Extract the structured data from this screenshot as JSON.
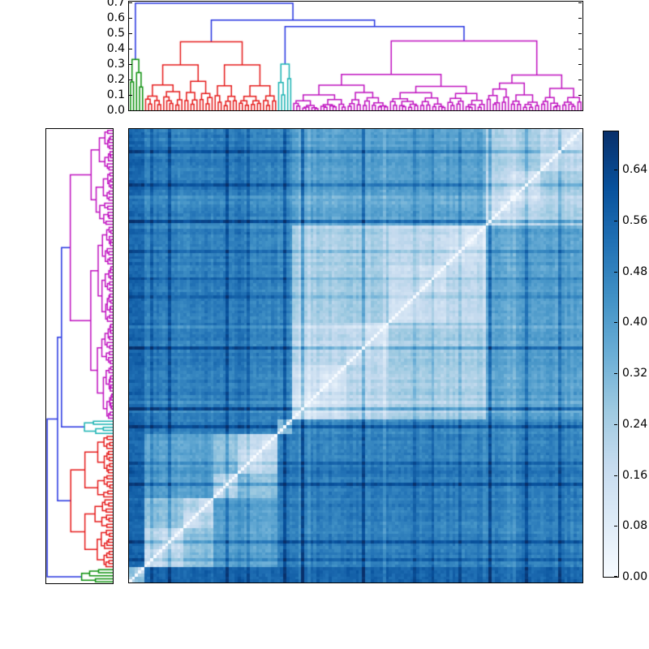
{
  "figure": {
    "background": "#ffffff",
    "title": ""
  },
  "chart_data": {
    "type": "heatmap",
    "subtype": "clustermap-pairwise-distance-matrix",
    "title": "",
    "n_leaves": 150,
    "colormap": {
      "name": "Blues",
      "vmin": 0.0,
      "vmax": 0.7,
      "stops": [
        {
          "t": 0.0,
          "rgb": [
            247,
            251,
            255
          ]
        },
        {
          "t": 0.125,
          "rgb": [
            222,
            235,
            247
          ]
        },
        {
          "t": 0.25,
          "rgb": [
            198,
            219,
            239
          ]
        },
        {
          "t": 0.375,
          "rgb": [
            158,
            202,
            225
          ]
        },
        {
          "t": 0.5,
          "rgb": [
            107,
            174,
            214
          ]
        },
        {
          "t": 0.625,
          "rgb": [
            66,
            146,
            198
          ]
        },
        {
          "t": 0.75,
          "rgb": [
            33,
            113,
            181
          ]
        },
        {
          "t": 0.875,
          "rgb": [
            8,
            81,
            156
          ]
        },
        {
          "t": 1.0,
          "rgb": [
            8,
            48,
            107
          ]
        }
      ]
    },
    "heatmap": {
      "grid": false,
      "diagonal_value": 0.0,
      "diagonal_note": "white zero-distance line runs bottom-left to top-right (row order is reversed column order)",
      "column_order_left_to_right": [
        "green",
        "red",
        "cyan",
        "magenta"
      ],
      "row_order_top_to_bottom": [
        "magenta",
        "cyan",
        "red",
        "green"
      ],
      "block_distances": {
        "within_green": 0.15,
        "within_red": 0.15,
        "within_cyan": 0.15,
        "within_magenta": 0.2,
        "green_vs_rest": 0.55,
        "red_vs_magenta": 0.47,
        "red_vs_cyan": 0.47,
        "cyan_vs_magenta": 0.43
      }
    },
    "top_dendrogram": {
      "orientation": "top",
      "axis_max": 0.705,
      "root_height": 0.695,
      "y_ticks": [
        {
          "label": "0.7",
          "value": 0.7
        },
        {
          "label": "0.6",
          "value": 0.6
        },
        {
          "label": "0.5",
          "value": 0.5
        },
        {
          "label": "0.4",
          "value": 0.4
        },
        {
          "label": "0.3",
          "value": 0.3
        },
        {
          "label": "0.2",
          "value": 0.2
        },
        {
          "label": "0.1",
          "value": 0.1
        },
        {
          "label": "0.0",
          "value": 0.0
        }
      ]
    },
    "left_dendrogram": {
      "orientation": "left",
      "axis_max": 0.705,
      "root_height": 0.695,
      "leaf_order": "reversed relative to top dendrogram",
      "ticks": []
    },
    "clusters": [
      {
        "name": "green",
        "color": "#0a8f0a",
        "size": 5,
        "root_height": 0.33
      },
      {
        "name": "red",
        "color": "#e51a1a",
        "size": 44,
        "root_height": 0.445
      },
      {
        "name": "cyan",
        "color": "#18b2b2",
        "size": 5,
        "root_height": 0.3
      },
      {
        "name": "magenta",
        "color": "#bf10bf",
        "size": 96,
        "root_height": 0.45
      }
    ],
    "merges": [
      {
        "join": [
          "cyan",
          "magenta"
        ],
        "height": 0.543
      },
      {
        "join": [
          "red",
          "cyan+magenta"
        ],
        "height": 0.585
      },
      {
        "join": [
          "green",
          "red+cyan+magenta"
        ],
        "height": 0.695
      }
    ],
    "link_above_threshold_color": "#2433e0",
    "colorbar": {
      "position": "right",
      "ticks": [
        {
          "label": "0.64",
          "value": 0.64
        },
        {
          "label": "0.56",
          "value": 0.56
        },
        {
          "label": "0.48",
          "value": 0.48
        },
        {
          "label": "0.40",
          "value": 0.4
        },
        {
          "label": "0.32",
          "value": 0.32
        },
        {
          "label": "0.24",
          "value": 0.24
        },
        {
          "label": "0.16",
          "value": 0.16
        },
        {
          "label": "0.08",
          "value": 0.08
        },
        {
          "label": "0.00",
          "value": 0.0
        }
      ]
    },
    "render_params": {
      "seed": 1337,
      "cophenetic_scale": 0.68,
      "leaf_offset_base": 0.02,
      "leaf_offset_rand": 0.05,
      "dark_stripe_chance": 0.08,
      "light_stripe_chance": 0.05,
      "pair_noise": 0.05
    }
  }
}
